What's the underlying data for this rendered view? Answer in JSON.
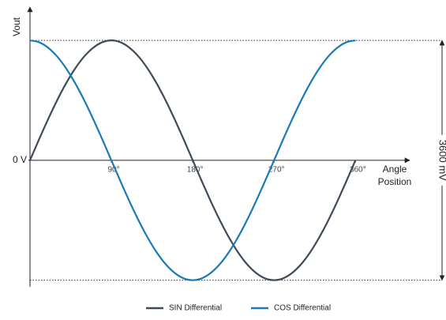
{
  "chart_data": {
    "type": "line",
    "y_label": "Vout",
    "x_label": [
      "Angle",
      "Position"
    ],
    "annotation": "3600 mV",
    "x": [
      0,
      10,
      20,
      30,
      40,
      50,
      60,
      70,
      80,
      90,
      100,
      110,
      120,
      130,
      140,
      150,
      160,
      170,
      180,
      190,
      200,
      210,
      220,
      230,
      240,
      250,
      260,
      270,
      280,
      290,
      300,
      310,
      320,
      330,
      340,
      350,
      360
    ],
    "series": [
      {
        "name": "SIN Differential",
        "color": "#3e4a5a",
        "values": [
          0,
          313,
          616,
          900,
          1157,
          1379,
          1559,
          1691,
          1773,
          1800,
          1773,
          1691,
          1559,
          1379,
          1157,
          900,
          616,
          313,
          0,
          -313,
          -616,
          -900,
          -1157,
          -1379,
          -1559,
          -1691,
          -1773,
          -1800,
          -1773,
          -1691,
          -1559,
          -1379,
          -1157,
          -900,
          -616,
          -313,
          0
        ]
      },
      {
        "name": "COS Differential",
        "color": "#1a7ab5",
        "values": [
          1800,
          1773,
          1691,
          1559,
          1379,
          1157,
          900,
          616,
          313,
          0,
          -313,
          -616,
          -900,
          -1157,
          -1379,
          -1559,
          -1691,
          -1773,
          -1800,
          -1773,
          -1691,
          -1559,
          -1379,
          -1157,
          -900,
          -616,
          -313,
          0,
          313,
          616,
          900,
          1157,
          1379,
          1559,
          1691,
          1773,
          1800
        ]
      }
    ],
    "xlim": [
      0,
      420
    ],
    "xticks": [
      {
        "value": 90,
        "label": "90°"
      },
      {
        "value": 180,
        "label": "180°"
      },
      {
        "value": 270,
        "label": "270°"
      },
      {
        "value": 360,
        "label": "360°"
      }
    ],
    "ylim": [
      -1900,
      2300
    ],
    "yticks": [
      {
        "value": 0,
        "label": "0 V"
      }
    ],
    "legend": "bottom"
  }
}
